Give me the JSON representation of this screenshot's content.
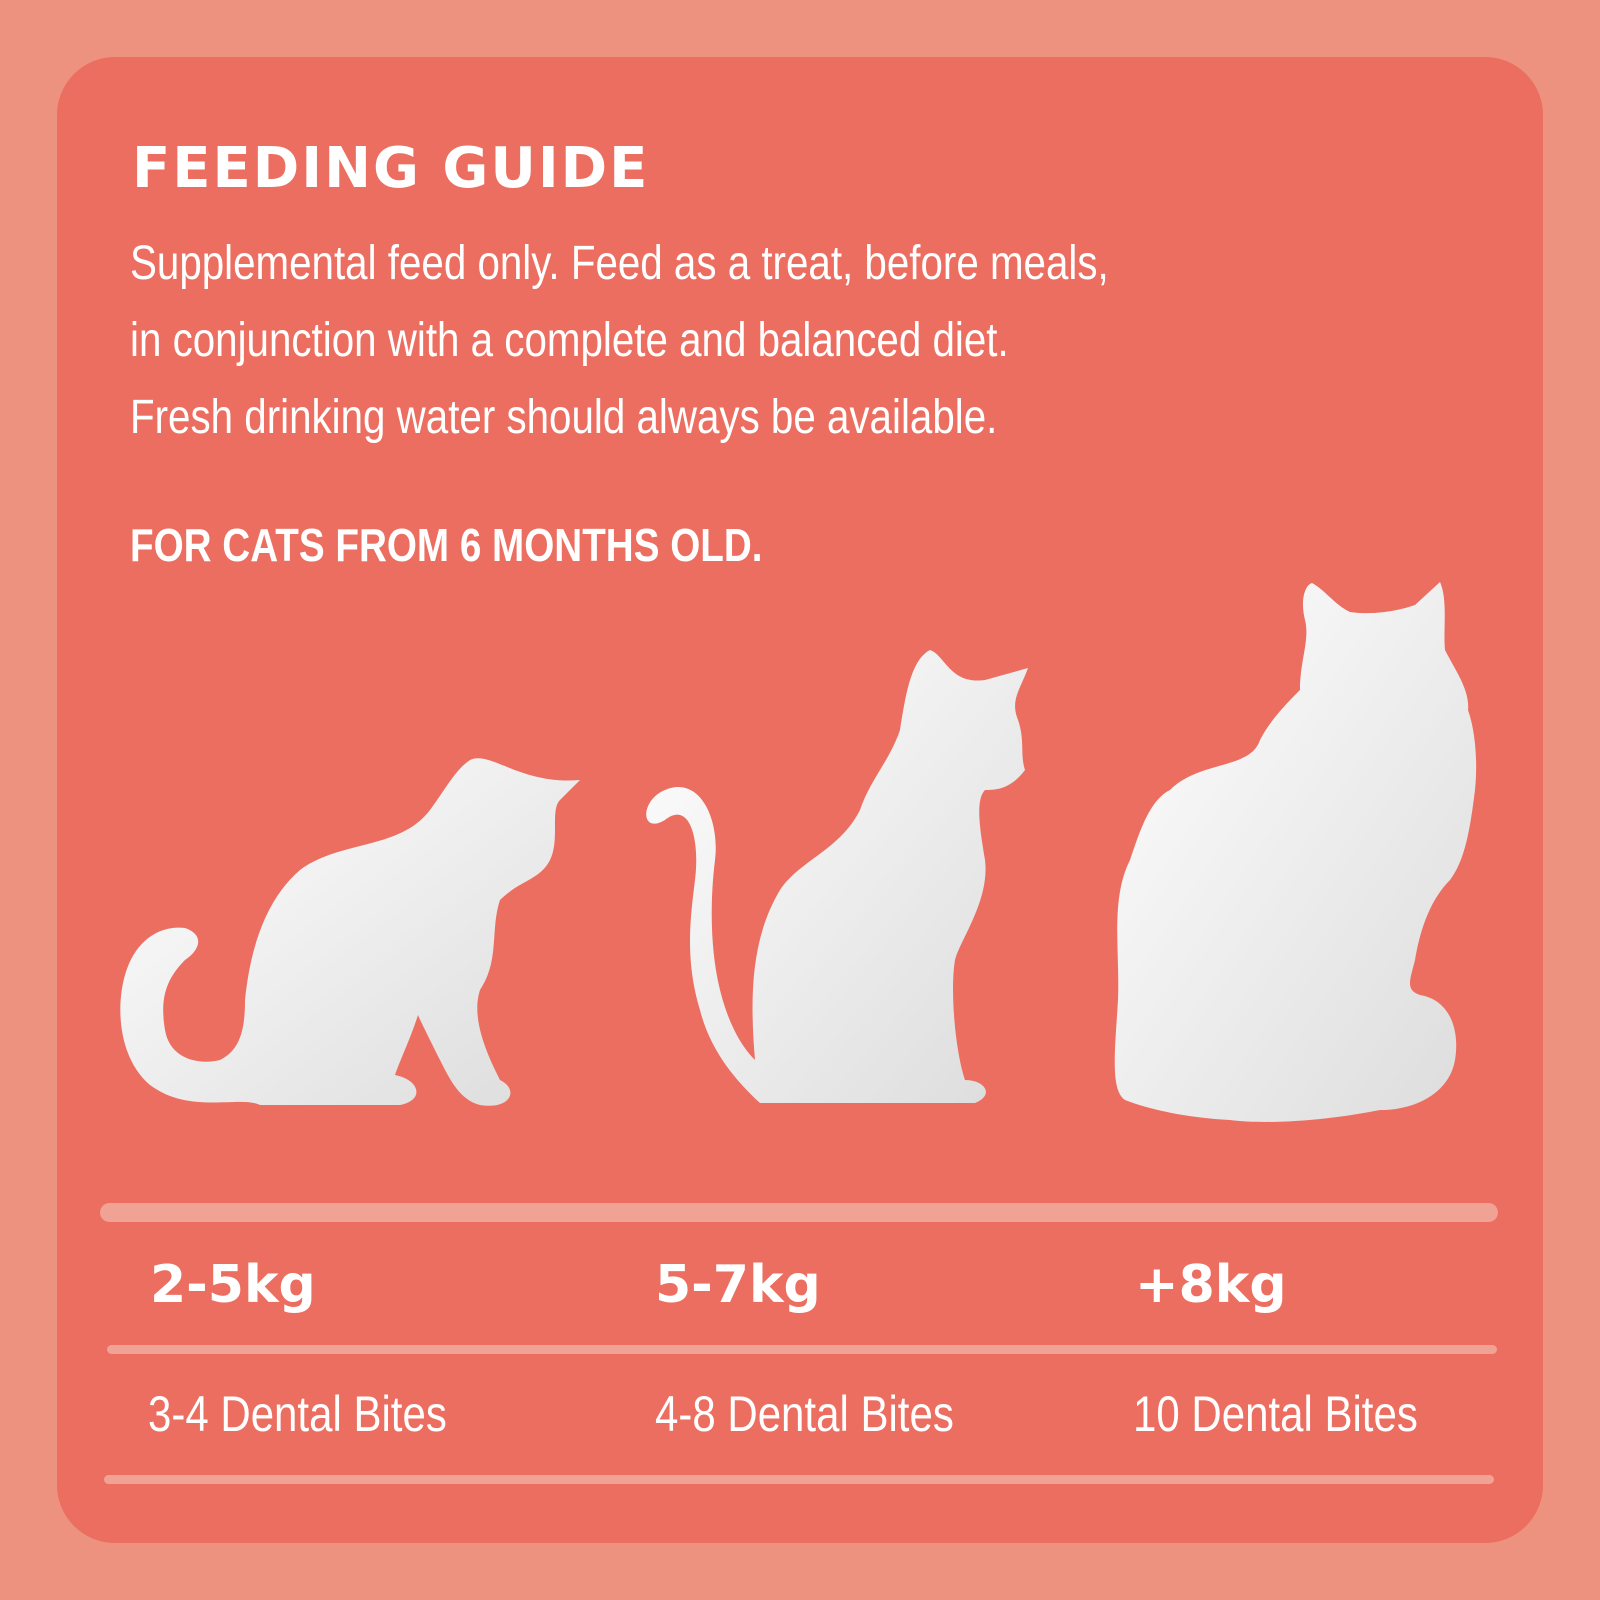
{
  "title": "FEEDING GUIDE",
  "description": [
    "Supplemental feed only. Feed as a treat, before meals,",
    "in conjunction with a complete and balanced diet.",
    "Fresh drinking water should always be available."
  ],
  "age_note": "FOR CATS FROM 6 MONTHS OLD.",
  "table": [
    {
      "weight": "2-5kg",
      "amount": "3-4 Dental Bites"
    },
    {
      "weight": "5-7kg",
      "amount": "4-8 Dental Bites"
    },
    {
      "weight": "+8kg",
      "amount": "10 Dental Bites"
    }
  ],
  "colors": {
    "background": "#EC927E",
    "card": "#EC6E60",
    "rule": "#F0A394",
    "text": "#FFFFFF"
  },
  "icons": [
    "small-cat-silhouette-icon",
    "medium-cat-silhouette-icon",
    "large-cat-silhouette-icon"
  ]
}
